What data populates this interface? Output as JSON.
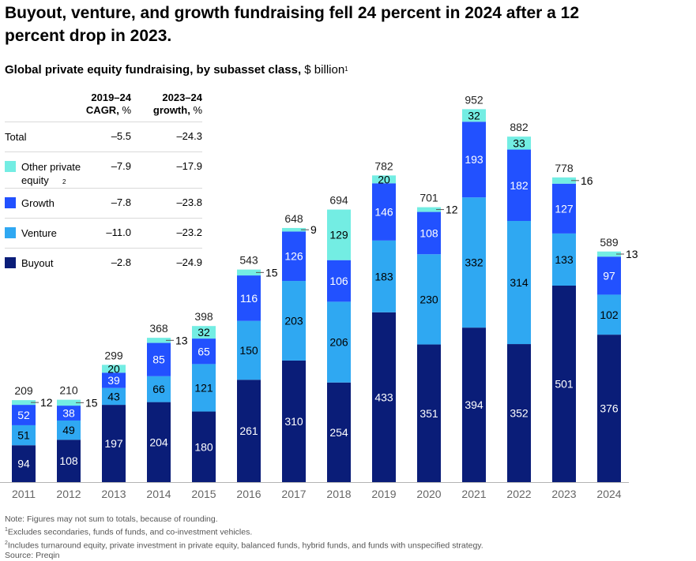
{
  "header": {
    "title": "Buyout, venture, and growth fundraising fell 24 percent in 2024 after a 12 percent drop in 2023.",
    "subtitle_bold": "Global private equity fundraising, by subasset class,",
    "subtitle_unit": "$ billion",
    "subtitle_sup": "1"
  },
  "table": {
    "col1_line1": "2019–24",
    "col1_line2_bold": "CAGR,",
    "col1_line2_unit": "%",
    "col2_line1": "2023–24",
    "col2_line2_bold": "growth,",
    "col2_line2_unit": "%",
    "rows": [
      {
        "label": "Total",
        "cagr": "–5.5",
        "growth": "–24.3"
      },
      {
        "label": "Other private equity",
        "sup": "2",
        "cagr": "–7.9",
        "growth": "–17.9"
      },
      {
        "label": "Growth",
        "cagr": "–7.8",
        "growth": "–23.8"
      },
      {
        "label": "Venture",
        "cagr": "–11.0",
        "growth": "–23.2"
      },
      {
        "label": "Buyout",
        "cagr": "–2.8",
        "growth": "–24.9"
      }
    ]
  },
  "colors": {
    "buyout": "#0a1d78",
    "venture": "#2fa8f2",
    "growth": "#2251ff",
    "other": "#73ede3",
    "axis": "#b3b3b3",
    "tick_text": "#666666"
  },
  "chart_data": {
    "type": "bar",
    "stacked": true,
    "title": "Global private equity fundraising, by subasset class, $ billion",
    "xlabel": "",
    "ylabel": "$ billion",
    "ylim": [
      0,
      952
    ],
    "grid": false,
    "legend": "top-left table",
    "categories": [
      "2011",
      "2012",
      "2013",
      "2014",
      "2015",
      "2016",
      "2017",
      "2018",
      "2019",
      "2020",
      "2021",
      "2022",
      "2023",
      "2024"
    ],
    "series": [
      {
        "name": "Buyout",
        "key": "buyout",
        "values": [
          94,
          108,
          197,
          204,
          180,
          261,
          310,
          254,
          433,
          351,
          394,
          352,
          501,
          376
        ]
      },
      {
        "name": "Venture",
        "key": "venture",
        "values": [
          51,
          49,
          43,
          66,
          121,
          150,
          203,
          206,
          183,
          230,
          332,
          314,
          133,
          102
        ]
      },
      {
        "name": "Growth",
        "key": "growth",
        "values": [
          52,
          38,
          39,
          85,
          65,
          116,
          126,
          106,
          146,
          108,
          193,
          182,
          127,
          97
        ]
      },
      {
        "name": "Other private equity",
        "key": "other",
        "values": [
          12,
          15,
          20,
          13,
          32,
          15,
          9,
          129,
          20,
          12,
          32,
          33,
          16,
          13
        ]
      }
    ],
    "totals": [
      209,
      210,
      299,
      368,
      398,
      543,
      648,
      694,
      782,
      701,
      952,
      882,
      778,
      589
    ],
    "outside_label_other": [
      true,
      true,
      false,
      true,
      false,
      true,
      true,
      false,
      false,
      true,
      false,
      false,
      true,
      true
    ]
  },
  "notes": {
    "note": "Note: Figures may not sum to totals, because of rounding.",
    "fn1_sup": "1",
    "fn1": "Excludes secondaries, funds of funds, and co-investment vehicles.",
    "fn2_sup": "2",
    "fn2": "Includes turnaround equity, private investment in private equity, balanced funds, hybrid funds, and funds with unspecified strategy.",
    "source": "Source: Preqin"
  }
}
